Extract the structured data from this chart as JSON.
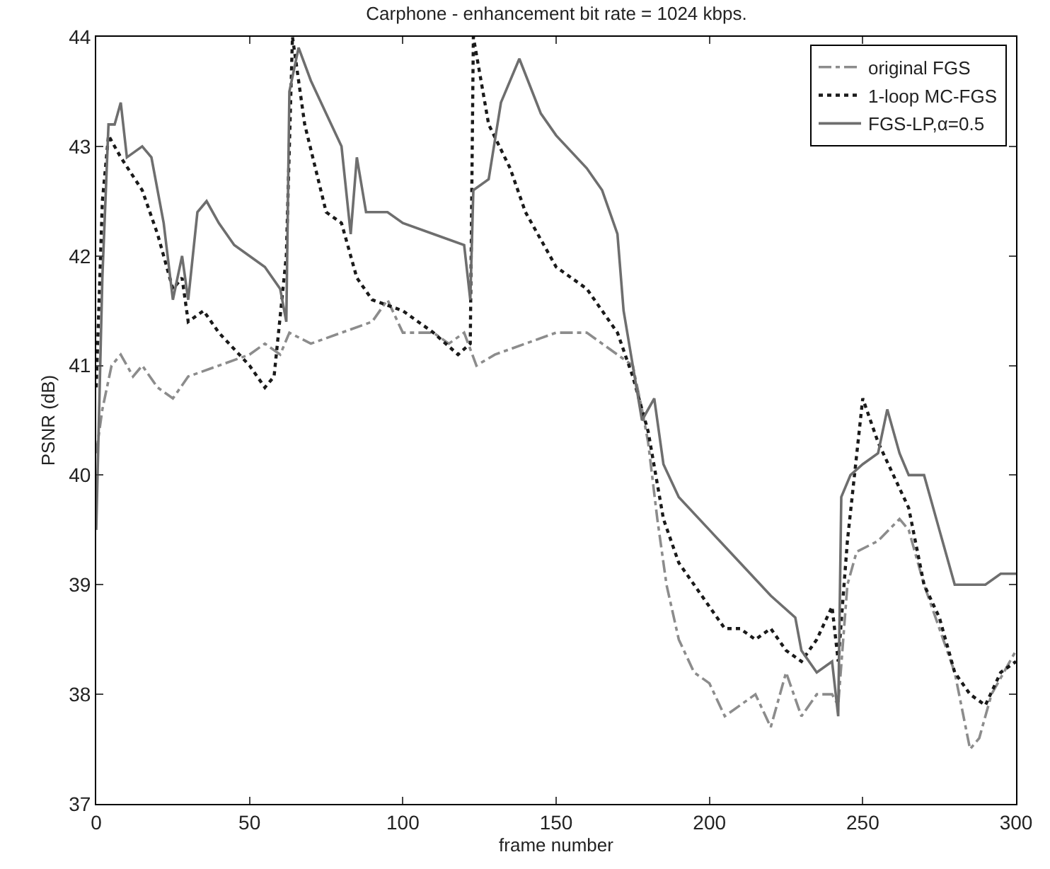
{
  "chart_data": {
    "type": "line",
    "title": "Carphone - enhancement bit rate = 1024 kbps.",
    "xlabel": "frame number",
    "ylabel": "PSNR (dB)",
    "xlim": [
      0,
      300
    ],
    "xticks": [
      0,
      50,
      100,
      150,
      200,
      250,
      300
    ],
    "ylim": [
      37,
      44
    ],
    "yticks": [
      37,
      38,
      39,
      40,
      41,
      42,
      43,
      44
    ],
    "legend": "top right",
    "marker": "none",
    "series": [
      {
        "name": "original FGS",
        "color": "#8c8c8c",
        "line_style": "dashdot",
        "x": [
          0,
          2,
          5,
          8,
          12,
          15,
          20,
          25,
          30,
          40,
          50,
          55,
          60,
          63,
          70,
          80,
          90,
          95,
          100,
          110,
          115,
          120,
          124,
          130,
          140,
          150,
          160,
          170,
          175,
          178,
          180,
          183,
          186,
          190,
          195,
          200,
          205,
          210,
          215,
          220,
          225,
          230,
          235,
          240,
          242,
          245,
          248,
          255,
          262,
          265,
          270,
          275,
          280,
          285,
          288,
          292,
          296,
          300
        ],
        "values": [
          40.2,
          40.6,
          41.0,
          41.1,
          40.9,
          41.0,
          40.8,
          40.7,
          40.9,
          41.0,
          41.1,
          41.2,
          41.1,
          41.3,
          41.2,
          41.3,
          41.4,
          41.6,
          41.3,
          41.3,
          41.2,
          41.3,
          41.0,
          41.1,
          41.2,
          41.3,
          41.3,
          41.1,
          41.0,
          40.6,
          40.3,
          39.6,
          39.0,
          38.5,
          38.2,
          38.1,
          37.8,
          37.9,
          38.0,
          37.7,
          38.2,
          37.8,
          38.0,
          38.0,
          37.9,
          39.0,
          39.3,
          39.4,
          39.6,
          39.5,
          39.0,
          38.6,
          38.2,
          37.5,
          37.6,
          38.0,
          38.2,
          38.4
        ]
      },
      {
        "name": "1-loop MC-FGS",
        "color": "#1a1a1a",
        "line_style": "dotted",
        "x": [
          0,
          2,
          4,
          8,
          15,
          20,
          25,
          28,
          30,
          35,
          40,
          50,
          55,
          58,
          62,
          64,
          68,
          75,
          80,
          85,
          90,
          100,
          110,
          118,
          122,
          123,
          128,
          135,
          140,
          150,
          160,
          170,
          175,
          180,
          185,
          190,
          200,
          205,
          210,
          215,
          220,
          225,
          230,
          235,
          240,
          242,
          245,
          250,
          255,
          260,
          265,
          270,
          275,
          280,
          285,
          290,
          295,
          300
        ],
        "values": [
          40.8,
          42.5,
          43.1,
          42.9,
          42.6,
          42.2,
          41.7,
          41.8,
          41.4,
          41.5,
          41.3,
          41.0,
          40.8,
          40.9,
          42.0,
          44.0,
          43.2,
          42.4,
          42.3,
          41.8,
          41.6,
          41.5,
          41.3,
          41.1,
          41.2,
          44.0,
          43.2,
          42.8,
          42.4,
          41.9,
          41.7,
          41.3,
          40.9,
          40.4,
          39.6,
          39.2,
          38.8,
          38.6,
          38.6,
          38.5,
          38.6,
          38.4,
          38.3,
          38.5,
          38.8,
          38.3,
          39.4,
          40.7,
          40.3,
          40.0,
          39.7,
          39.0,
          38.7,
          38.2,
          38.0,
          37.9,
          38.2,
          38.3
        ]
      },
      {
        "name": "FGS-LP,α=0.5",
        "color": "#6e6e6e",
        "line_style": "solid",
        "x": [
          0,
          2,
          4,
          6,
          8,
          10,
          15,
          18,
          22,
          25,
          28,
          30,
          33,
          36,
          40,
          45,
          50,
          55,
          60,
          62,
          63,
          66,
          70,
          75,
          80,
          83,
          85,
          88,
          95,
          100,
          110,
          120,
          122,
          123,
          128,
          132,
          138,
          145,
          150,
          160,
          165,
          170,
          172,
          175,
          178,
          182,
          185,
          190,
          200,
          210,
          220,
          228,
          230,
          235,
          240,
          242,
          243,
          246,
          250,
          255,
          258,
          262,
          265,
          270,
          275,
          280,
          290,
          295,
          300
        ],
        "values": [
          39.5,
          41.8,
          43.2,
          43.2,
          43.4,
          42.9,
          43.0,
          42.9,
          42.3,
          41.6,
          42.0,
          41.6,
          42.4,
          42.5,
          42.3,
          42.1,
          42.0,
          41.9,
          41.7,
          41.4,
          43.5,
          43.9,
          43.6,
          43.3,
          43.0,
          42.2,
          42.9,
          42.4,
          42.4,
          42.3,
          42.2,
          42.1,
          41.6,
          42.6,
          42.7,
          43.4,
          43.8,
          43.3,
          43.1,
          42.8,
          42.6,
          42.2,
          41.5,
          41.0,
          40.5,
          40.7,
          40.1,
          39.8,
          39.5,
          39.2,
          38.9,
          38.7,
          38.4,
          38.2,
          38.3,
          37.8,
          39.8,
          40.0,
          40.1,
          40.2,
          40.6,
          40.2,
          40.0,
          40.0,
          39.5,
          39.0,
          39.0,
          39.1,
          39.1
        ]
      }
    ]
  }
}
